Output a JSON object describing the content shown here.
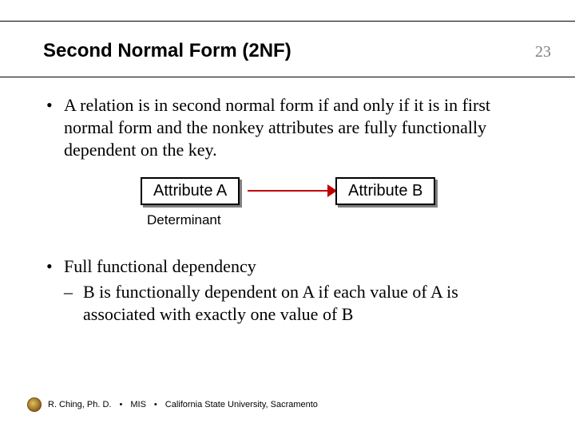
{
  "slide": {
    "title": "Second Normal Form (2NF)",
    "page_number": "23",
    "bullets": [
      {
        "text": "A relation is in second normal form if and only if it is in first normal form and the nonkey attributes are fully functionally dependent on the key."
      },
      {
        "text": "Full functional dependency",
        "sub": "B is functionally dependent on A if each value of A is associated with exactly one value of B"
      }
    ],
    "diagram": {
      "box_a": "Attribute A",
      "box_b": "Attribute B",
      "label_a": "Determinant",
      "arrow_color": "#c00000",
      "box_border": "#000000",
      "shadow": "rgba(0,0,0,0.5)"
    },
    "footer": {
      "author": "R. Ching, Ph. D.",
      "dept": "MIS",
      "org": "California State University, Sacramento"
    }
  }
}
